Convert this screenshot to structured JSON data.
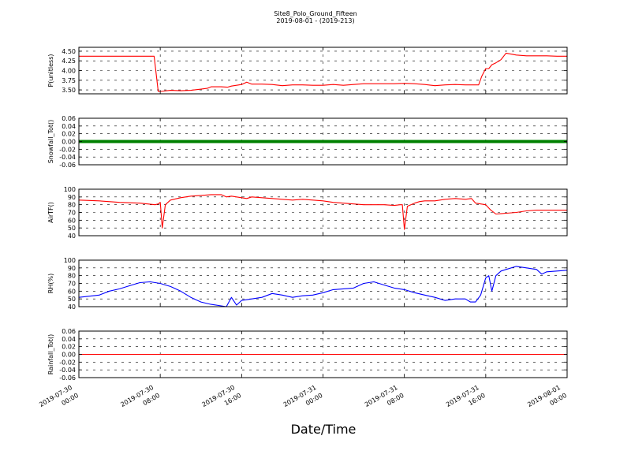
{
  "title": "Site8_Polo_Ground_Fifteen",
  "subtitle": "2019-08-01 - (2019-213)",
  "xlabel": "Date/Time",
  "x_ticks": [
    {
      "t": 0,
      "l1": "2019-07-30",
      "l2": "00:00"
    },
    {
      "t": 8,
      "l1": "2019-07-30",
      "l2": "08:00"
    },
    {
      "t": 16,
      "l1": "2019-07-30",
      "l2": "16:00"
    },
    {
      "t": 24,
      "l1": "2019-07-31",
      "l2": "00:00"
    },
    {
      "t": 32,
      "l1": "2019-07-31",
      "l2": "08:00"
    },
    {
      "t": 40,
      "l1": "2019-07-31",
      "l2": "16:00"
    },
    {
      "t": 48,
      "l1": "2019-08-01",
      "l2": "00:00"
    }
  ],
  "chart_data": [
    {
      "type": "line",
      "ylabel": "P(unitless)",
      "ylim": [
        3.4,
        4.6
      ],
      "yticks": [
        3.5,
        4.0,
        4.5
      ],
      "ytick_labels": [
        "3.50",
        "3.75",
        "4.00",
        "4.25",
        "4.50"
      ],
      "ytick_values": [
        3.5,
        3.75,
        4.0,
        4.25,
        4.5
      ],
      "color": "#ff0000",
      "x_start": "2019-07-30 00:00",
      "x_end": "2019-08-01 00:00",
      "x": [
        0,
        7.4,
        7.8,
        8.0,
        9,
        10,
        11,
        12,
        12.6,
        13,
        14,
        14.6,
        15,
        15.5,
        16,
        16.5,
        17,
        18,
        19,
        20,
        21,
        22,
        23,
        24,
        25,
        26,
        27,
        28,
        29,
        30,
        31,
        32,
        33,
        34,
        35,
        36,
        37,
        38,
        39,
        39.3,
        39.6,
        40,
        40.3,
        40.6,
        41,
        41.5,
        42,
        43,
        44,
        45,
        46,
        47,
        48
      ],
      "y": [
        4.37,
        4.37,
        3.46,
        3.46,
        3.49,
        3.48,
        3.49,
        3.52,
        3.54,
        3.58,
        3.58,
        3.57,
        3.6,
        3.62,
        3.64,
        3.7,
        3.65,
        3.65,
        3.64,
        3.61,
        3.63,
        3.63,
        3.62,
        3.62,
        3.64,
        3.62,
        3.64,
        3.66,
        3.66,
        3.66,
        3.66,
        3.67,
        3.66,
        3.64,
        3.61,
        3.63,
        3.64,
        3.63,
        3.63,
        3.63,
        3.85,
        4.05,
        4.05,
        4.15,
        4.2,
        4.28,
        4.45,
        4.4,
        4.38,
        4.38,
        4.38,
        4.37,
        4.37
      ]
    },
    {
      "type": "line",
      "ylabel": "Snowfall_Tot()",
      "ylim": [
        -0.06,
        0.06
      ],
      "ytick_labels": [
        "-0.06",
        "-0.04",
        "-0.02",
        "0.00",
        "0.02",
        "0.04",
        "0.06"
      ],
      "ytick_values": [
        -0.06,
        -0.04,
        -0.02,
        0.0,
        0.02,
        0.04,
        0.06
      ],
      "color": "#008000",
      "style": "markers",
      "x_start": "2019-07-30 00:00",
      "x_end": "2019-08-01 00:00",
      "x": [
        0,
        48
      ],
      "y": [
        0.0,
        0.0
      ]
    },
    {
      "type": "line",
      "ylabel": "AirTF()",
      "ylim": [
        40,
        100
      ],
      "ytick_labels": [
        "40",
        "50",
        "60",
        "70",
        "80",
        "90",
        "100"
      ],
      "ytick_values": [
        40,
        50,
        60,
        70,
        80,
        90,
        100
      ],
      "color": "#ff0000",
      "x_start": "2019-07-30 00:00",
      "x_end": "2019-08-01 00:00",
      "x": [
        0,
        2,
        4,
        6,
        7.5,
        7.8,
        8.0,
        8.2,
        8.5,
        9,
        10,
        11,
        12,
        13,
        14,
        14.5,
        15,
        16,
        16.5,
        17,
        18,
        19,
        20,
        21,
        22,
        23,
        24,
        25,
        26,
        27,
        28,
        29,
        30,
        31,
        31.6,
        31.8,
        32.0,
        32.3,
        33,
        33.5,
        34,
        35,
        36,
        37,
        38,
        38.6,
        39,
        40,
        40.5,
        41,
        42,
        43,
        44,
        45,
        46,
        47,
        48
      ],
      "y": [
        86,
        85,
        83,
        82,
        80,
        81,
        83,
        50,
        80,
        86,
        89,
        91,
        92,
        93,
        93,
        90,
        91,
        89,
        88,
        90,
        89,
        88,
        87,
        86,
        87,
        86,
        85,
        83,
        82,
        81,
        80,
        80,
        80,
        79,
        80,
        80,
        48,
        78,
        82,
        84,
        85,
        85,
        87,
        88,
        87,
        88,
        82,
        80,
        73,
        68,
        69,
        70,
        72,
        73,
        73,
        73,
        73
      ]
    },
    {
      "type": "line",
      "ylabel": "RH(%)",
      "ylim": [
        40,
        100
      ],
      "ytick_labels": [
        "40",
        "50",
        "60",
        "70",
        "80",
        "90",
        "100"
      ],
      "ytick_values": [
        40,
        50,
        60,
        70,
        80,
        90,
        100
      ],
      "color": "#0000ff",
      "x_start": "2019-07-30 00:00",
      "x_end": "2019-08-01 00:00",
      "x": [
        0,
        2,
        3,
        4,
        5,
        6,
        7,
        8,
        8.5,
        9,
        10,
        11,
        12,
        13,
        14,
        14.5,
        15,
        15.5,
        16,
        17,
        18,
        19,
        20,
        21,
        22,
        23,
        24,
        25,
        26,
        27,
        28,
        29,
        30,
        31,
        32,
        33,
        34,
        35,
        36,
        37,
        38,
        38.5,
        39,
        39.5,
        40,
        40.3,
        40.6,
        41,
        41.5,
        42,
        43,
        44,
        45,
        45.5,
        46,
        47,
        48
      ],
      "y": [
        52,
        55,
        60,
        63,
        67,
        71,
        72,
        70,
        68,
        66,
        60,
        52,
        46,
        43,
        41,
        40,
        52,
        42,
        48,
        50,
        52,
        57,
        55,
        52,
        54,
        55,
        58,
        62,
        63,
        64,
        70,
        72,
        68,
        64,
        62,
        58,
        55,
        52,
        48,
        50,
        50,
        46,
        46,
        55,
        77,
        80,
        60,
        80,
        86,
        88,
        92,
        90,
        88,
        82,
        85,
        86,
        87
      ]
    },
    {
      "type": "line",
      "ylabel": "Rainfall_Tot()",
      "ylim": [
        -0.06,
        0.06
      ],
      "ytick_labels": [
        "-0.06",
        "-0.04",
        "-0.02",
        "0.00",
        "0.02",
        "0.04",
        "0.06"
      ],
      "ytick_values": [
        -0.06,
        -0.04,
        -0.02,
        0.0,
        0.02,
        0.04,
        0.06
      ],
      "color": "#ff0000",
      "x_start": "2019-07-30 00:00",
      "x_end": "2019-08-01 00:00",
      "x": [
        0,
        48
      ],
      "y": [
        0.0,
        0.0
      ]
    }
  ]
}
